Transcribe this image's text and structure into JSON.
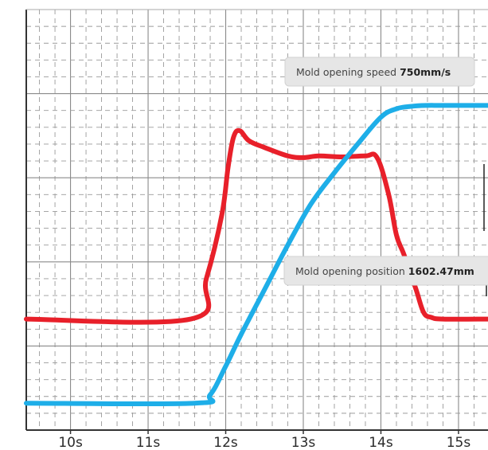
{
  "chart_data": {
    "type": "line",
    "title": "",
    "xlabel": "",
    "ylabel": "",
    "x_unit": "s",
    "xlim": [
      9.43,
      15.38
    ],
    "x_ticks": [
      10,
      11,
      12,
      13,
      14,
      15
    ],
    "x_tick_labels": [
      "10s",
      "11s",
      "12s",
      "13s",
      "14s",
      "15s"
    ],
    "grid": true,
    "legend": "none",
    "series": [
      {
        "key": "speed",
        "color": "#e8202a",
        "unit": "mm/s",
        "ylim": [
          0,
          1250
        ],
        "x": [
          9.43,
          11.55,
          11.75,
          11.95,
          12.03,
          12.1,
          12.18,
          12.3,
          12.5,
          12.8,
          13.0,
          13.2,
          13.5,
          13.8,
          13.95,
          14.1,
          14.2,
          14.3,
          14.45,
          14.55,
          14.65,
          14.8,
          15.38
        ],
        "y": [
          330,
          330,
          450,
          640,
          780,
          870,
          890,
          860,
          840,
          815,
          810,
          815,
          812,
          815,
          810,
          700,
          580,
          520,
          420,
          350,
          335,
          330,
          330
        ]
      },
      {
        "key": "position",
        "color": "#1eaee8",
        "unit": "mm",
        "ylim": [
          0,
          2500
        ],
        "x": [
          9.43,
          11.6,
          11.8,
          12.0,
          12.2,
          12.5,
          12.8,
          13.1,
          13.4,
          13.7,
          14.0,
          14.2,
          14.4,
          14.6,
          14.8,
          15.38
        ],
        "y": [
          160,
          160,
          210,
          380,
          570,
          835,
          1100,
          1345,
          1530,
          1700,
          1860,
          1910,
          1925,
          1930,
          1930,
          1930
        ]
      }
    ],
    "tooltips": [
      {
        "key": "speed",
        "label": "Mold opening speed",
        "value": "750mm/s"
      },
      {
        "key": "position",
        "label": "Mold opening position",
        "value": "1602.47mm"
      }
    ]
  }
}
